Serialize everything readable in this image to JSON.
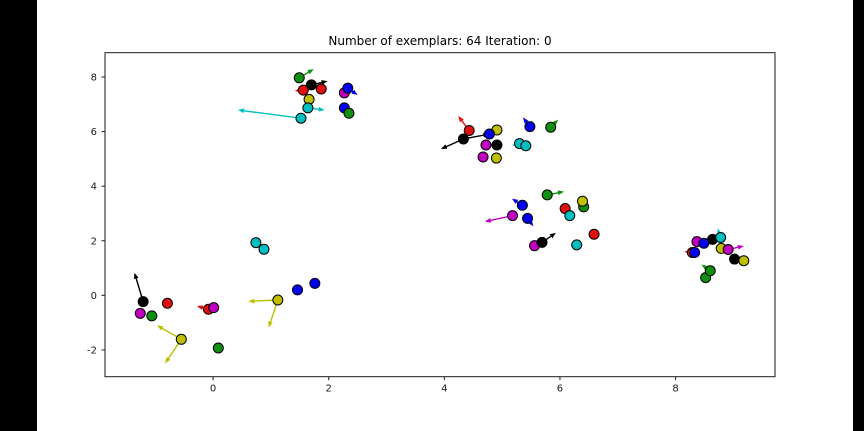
{
  "window": {
    "side_bar_color": "#000000",
    "figure_background": "#ffffff"
  },
  "chart_data": {
    "type": "scatter",
    "title": "Number of exemplars: 64 Iteration: 0",
    "xlabel": "",
    "ylabel": "",
    "xlim": [
      -1.87,
      9.72
    ],
    "ylim": [
      -2.98,
      8.89
    ],
    "xticks": [
      0,
      2,
      4,
      6,
      8
    ],
    "yticks": [
      -2,
      0,
      2,
      4,
      6,
      8
    ],
    "grid": false,
    "legend": null,
    "frame_color": "#1a1a1a",
    "tick_label_color": "#1a1a1a",
    "palette": {
      "blue": "#0000ee",
      "green": "#0f8f0f",
      "red": "#e01010",
      "cyan": "#00bfbf",
      "magenta": "#bf00bf",
      "yellow": "#bfbf00",
      "black": "#000000"
    },
    "marker": {
      "radius_px": 5,
      "edge_color": "#000000",
      "edge_width": 1
    },
    "arrow_style": {
      "line_width": 1.4,
      "head_length": 6,
      "head_half_width": 2.4
    },
    "points": [
      {
        "x": 1.49,
        "y": 7.97,
        "c": "green",
        "a": [
          [
            1.74,
            8.29
          ]
        ]
      },
      {
        "x": 1.7,
        "y": 7.71,
        "c": "black",
        "a": [
          [
            1.98,
            7.85
          ]
        ]
      },
      {
        "x": 1.56,
        "y": 7.52,
        "c": "red",
        "a": [
          [
            1.41,
            7.49
          ]
        ]
      },
      {
        "x": 1.87,
        "y": 7.56,
        "c": "red"
      },
      {
        "x": 1.66,
        "y": 7.18,
        "c": "yellow"
      },
      {
        "x": 1.64,
        "y": 6.87,
        "c": "cyan",
        "a": [
          [
            1.93,
            6.79
          ]
        ]
      },
      {
        "x": 1.52,
        "y": 6.49,
        "c": "cyan",
        "a": [
          [
            0.43,
            6.79
          ]
        ]
      },
      {
        "x": 2.27,
        "y": 7.42,
        "c": "magenta"
      },
      {
        "x": 2.33,
        "y": 7.59,
        "c": "blue",
        "a": [
          [
            2.5,
            7.34
          ]
        ]
      },
      {
        "x": 2.27,
        "y": 6.87,
        "c": "blue"
      },
      {
        "x": 2.35,
        "y": 6.67,
        "c": "green"
      },
      {
        "x": 4.91,
        "y": 6.06,
        "c": "yellow"
      },
      {
        "x": 4.33,
        "y": 5.73,
        "c": "black",
        "a": [
          [
            3.94,
            5.36
          ],
          [
            4.78,
            5.91
          ]
        ]
      },
      {
        "x": 4.43,
        "y": 6.04,
        "c": "red",
        "a": [
          [
            4.24,
            6.57
          ]
        ]
      },
      {
        "x": 4.72,
        "y": 5.51,
        "c": "magenta"
      },
      {
        "x": 4.91,
        "y": 5.51,
        "c": "black"
      },
      {
        "x": 4.78,
        "y": 5.91,
        "c": "blue"
      },
      {
        "x": 4.67,
        "y": 5.07,
        "c": "magenta"
      },
      {
        "x": 4.9,
        "y": 5.03,
        "c": "yellow"
      },
      {
        "x": 5.48,
        "y": 6.18,
        "c": "blue",
        "a": [
          [
            5.36,
            6.52
          ]
        ]
      },
      {
        "x": 5.3,
        "y": 5.56,
        "c": "cyan",
        "a": [
          [
            5.17,
            5.5
          ]
        ]
      },
      {
        "x": 5.41,
        "y": 5.48,
        "c": "cyan"
      },
      {
        "x": 5.84,
        "y": 6.16,
        "c": "green",
        "a": [
          [
            5.97,
            6.44
          ]
        ]
      },
      {
        "x": 5.78,
        "y": 3.68,
        "c": "green",
        "a": [
          [
            6.07,
            3.8
          ]
        ]
      },
      {
        "x": 6.41,
        "y": 3.24,
        "c": "green"
      },
      {
        "x": 6.39,
        "y": 3.45,
        "c": "yellow"
      },
      {
        "x": 5.35,
        "y": 3.3,
        "c": "blue",
        "a": [
          [
            5.17,
            3.54
          ]
        ]
      },
      {
        "x": 5.18,
        "y": 2.92,
        "c": "magenta",
        "a": [
          [
            4.7,
            2.7
          ]
        ]
      },
      {
        "x": 5.44,
        "y": 2.82,
        "c": "blue",
        "a": [
          [
            5.54,
            2.53
          ]
        ]
      },
      {
        "x": 6.09,
        "y": 3.18,
        "c": "red"
      },
      {
        "x": 6.17,
        "y": 2.92,
        "c": "cyan"
      },
      {
        "x": 6.59,
        "y": 2.24,
        "c": "red"
      },
      {
        "x": 5.56,
        "y": 1.82,
        "c": "magenta"
      },
      {
        "x": 5.69,
        "y": 1.94,
        "c": "black",
        "a": [
          [
            5.93,
            2.29
          ]
        ]
      },
      {
        "x": 6.29,
        "y": 1.85,
        "c": "cyan"
      },
      {
        "x": 8.37,
        "y": 1.97,
        "c": "magenta",
        "a": [
          [
            8.31,
            2.17
          ]
        ]
      },
      {
        "x": 8.49,
        "y": 1.91,
        "c": "blue"
      },
      {
        "x": 8.64,
        "y": 2.05,
        "c": "black"
      },
      {
        "x": 8.78,
        "y": 2.12,
        "c": "cyan",
        "a": [
          [
            8.73,
            2.45
          ]
        ]
      },
      {
        "x": 8.29,
        "y": 1.57,
        "c": "red",
        "a": [
          [
            8.15,
            1.6
          ]
        ]
      },
      {
        "x": 8.33,
        "y": 1.57,
        "c": "blue"
      },
      {
        "x": 8.79,
        "y": 1.72,
        "c": "yellow"
      },
      {
        "x": 8.91,
        "y": 1.68,
        "c": "magenta",
        "a": [
          [
            9.18,
            1.81
          ]
        ]
      },
      {
        "x": 9.02,
        "y": 1.33,
        "c": "black"
      },
      {
        "x": 9.18,
        "y": 1.27,
        "c": "yellow"
      },
      {
        "x": 8.52,
        "y": 0.65,
        "c": "green"
      },
      {
        "x": 8.6,
        "y": 0.9,
        "c": "green",
        "a": [
          [
            8.45,
            1.13
          ]
        ]
      },
      {
        "x": -1.21,
        "y": -0.23,
        "c": "black",
        "a": [
          [
            -1.36,
            0.83
          ]
        ]
      },
      {
        "x": -1.26,
        "y": -0.66,
        "c": "magenta"
      },
      {
        "x": -1.06,
        "y": -0.75,
        "c": "green"
      },
      {
        "x": -0.79,
        "y": -0.29,
        "c": "red"
      },
      {
        "x": -0.08,
        "y": -0.51,
        "c": "red",
        "a": [
          [
            -0.28,
            -0.39
          ]
        ]
      },
      {
        "x": 0.01,
        "y": -0.45,
        "c": "magenta"
      },
      {
        "x": -0.55,
        "y": -1.61,
        "c": "yellow",
        "a": [
          [
            -0.97,
            -1.1
          ],
          [
            -0.83,
            -2.49
          ]
        ]
      },
      {
        "x": 0.09,
        "y": -1.93,
        "c": "green"
      },
      {
        "x": 0.74,
        "y": 1.93,
        "c": "cyan"
      },
      {
        "x": 0.88,
        "y": 1.69,
        "c": "cyan"
      },
      {
        "x": 1.46,
        "y": 0.2,
        "c": "blue"
      },
      {
        "x": 1.76,
        "y": 0.44,
        "c": "blue"
      },
      {
        "x": 1.12,
        "y": -0.17,
        "c": "yellow",
        "a": [
          [
            0.61,
            -0.22
          ],
          [
            0.96,
            -1.18
          ]
        ]
      }
    ]
  }
}
